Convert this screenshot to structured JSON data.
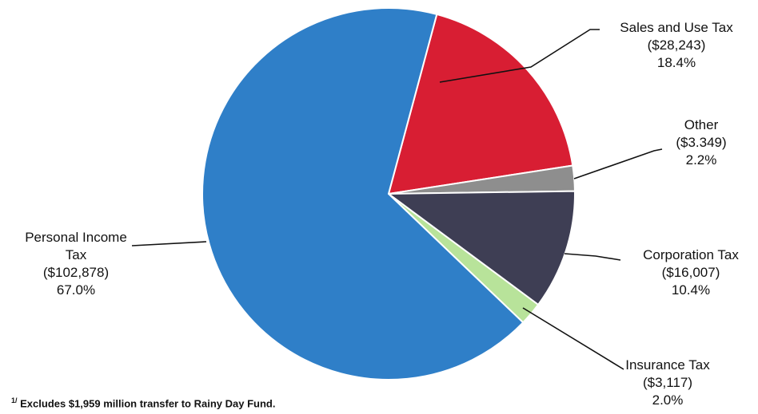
{
  "chart_data": {
    "type": "pie",
    "slices": [
      {
        "label": "Sales and Use Tax",
        "amount": "($28,243)",
        "percent": "18.4%",
        "value": 28243,
        "pct": 18.4,
        "color": "#d81e33"
      },
      {
        "label": "Other",
        "amount": "($3.349)",
        "percent": "2.2%",
        "value": 3349,
        "pct": 2.2,
        "color": "#8e8e8e"
      },
      {
        "label": "Corporation Tax",
        "amount": "($16,007)",
        "percent": "10.4%",
        "value": 16007,
        "pct": 10.4,
        "color": "#3e3e54"
      },
      {
        "label": "Insurance Tax",
        "amount": "($3,117)",
        "percent": "2.0%",
        "value": 3117,
        "pct": 2.0,
        "color": "#b8e39a"
      },
      {
        "label": "Personal Income Tax",
        "amount": "($102,878)",
        "percent": "67.0%",
        "value": 102878,
        "pct": 67.0,
        "color": "#2f7fc8"
      }
    ],
    "label_placement": "outside with leader lines",
    "legend": "none"
  },
  "footnote": {
    "marker": "1/",
    "text": "Excludes $1,959 million transfer to Rainy Day Fund."
  }
}
